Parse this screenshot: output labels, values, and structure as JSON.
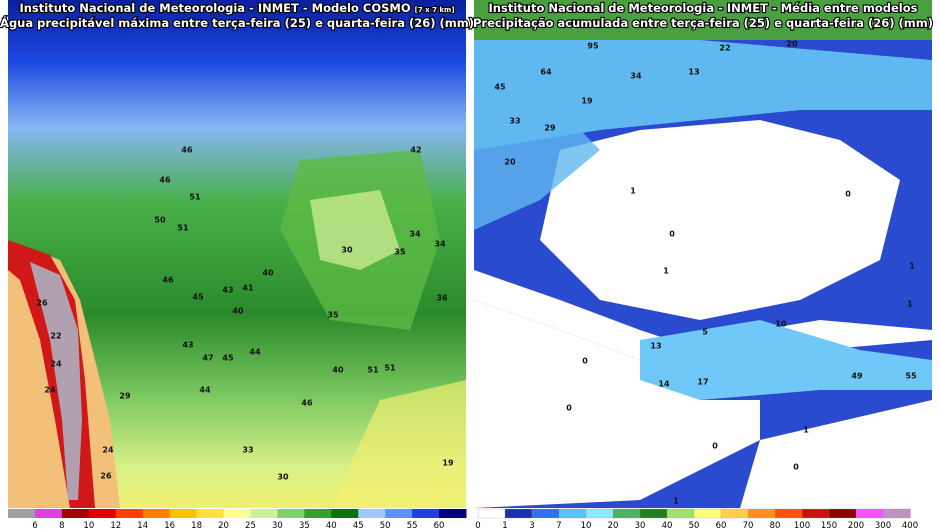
{
  "left_panel": {
    "title": "Instituto Nacional de Meteorologia - INMET - Modelo COSMO",
    "title_suffix": "[7 x 7 km]",
    "subtitle": "Água precipitável máxima entre terça-feira (25) e quarta-feira (26) (mm)",
    "map_labels": [
      "46",
      "46",
      "51",
      "50",
      "51",
      "30",
      "34",
      "34",
      "35",
      "40",
      "46",
      "45",
      "43",
      "41",
      "40",
      "36",
      "35",
      "43",
      "45",
      "44",
      "47",
      "44",
      "40",
      "51",
      "51",
      "46",
      "29",
      "26",
      "22",
      "24",
      "24",
      "24",
      "26",
      "33",
      "30",
      "19",
      "42"
    ],
    "colorbar_colors": [
      "#a0a0a0",
      "#e040e0",
      "#a00000",
      "#e00000",
      "#ff4000",
      "#ff8000",
      "#ffc000",
      "#ffe040",
      "#ffff90",
      "#c8f0a0",
      "#80d070",
      "#30a030",
      "#107010",
      "#a0c8ff",
      "#6090ff",
      "#2040e0",
      "#000080"
    ],
    "colorbar_labels": [
      "6",
      "8",
      "10",
      "12",
      "14",
      "16",
      "18",
      "20",
      "25",
      "30",
      "35",
      "40",
      "45",
      "50",
      "55",
      "60"
    ]
  },
  "right_panel": {
    "title": "Instituto Nacional de Meteorologia - INMET - Média entre modelos",
    "subtitle": "Precipitação acumulada entre terça-feira (25) e quarta-feira (26) (mm)",
    "map_labels": [
      "20",
      "22",
      "95",
      "64",
      "45",
      "34",
      "13",
      "19",
      "33",
      "29",
      "20",
      "1",
      "0",
      "0",
      "1",
      "1",
      "13",
      "0",
      "14",
      "17",
      "49",
      "55",
      "0",
      "1",
      "0",
      "0",
      "1",
      "10",
      "5",
      "1"
    ],
    "colorbar_colors": [
      "#ffffff",
      "#1a30b0",
      "#3070f0",
      "#60c0ff",
      "#90e8ff",
      "#50b060",
      "#208020",
      "#a0e070",
      "#ffff80",
      "#ffd040",
      "#ff9020",
      "#ff5010",
      "#d01010",
      "#900000",
      "#ff50ff",
      "#c090c0"
    ],
    "colorbar_labels": [
      "0",
      "1",
      "3",
      "7",
      "10",
      "20",
      "30",
      "40",
      "50",
      "60",
      "70",
      "80",
      "100",
      "150",
      "200",
      "300",
      "400"
    ]
  }
}
